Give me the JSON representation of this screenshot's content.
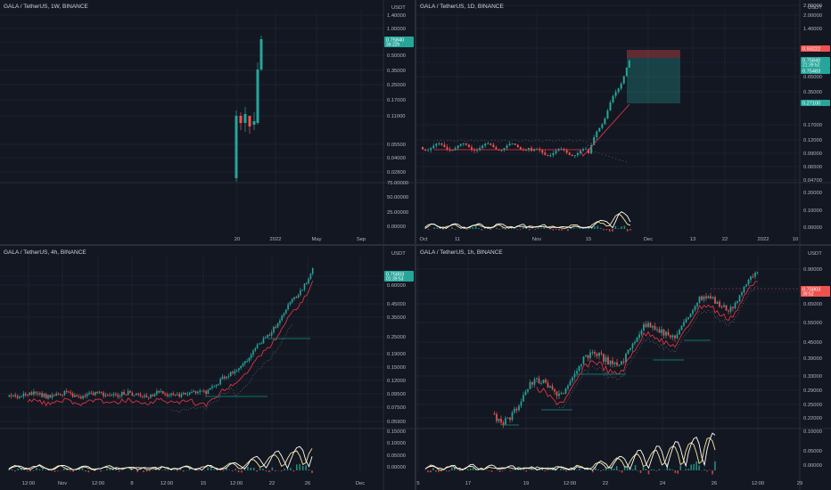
{
  "panes": [
    {
      "id": "w1",
      "title": "GALA / TetherUS, 1W, BINANCE",
      "axis_unit": "USDT",
      "y_ticks": [
        "1.40000",
        "1.00000",
        "0.50000",
        "0.35000",
        "0.25000",
        "0.17000",
        "0.11000",
        "0.05500",
        "0.04000",
        "0.02800"
      ],
      "lower_ticks": [
        "75.00000",
        "50.00000",
        "25.00000",
        "0.00000"
      ],
      "x_ticks": [
        "20",
        "2022",
        "May",
        "Sep"
      ],
      "price_labels": [
        {
          "value": "0.75840",
          "sub": "3d 22h",
          "color": "#26a69a"
        }
      ],
      "price_line": "0.75840"
    },
    {
      "id": "d1",
      "title": "GALA / TetherUS, 1D, BINANCE",
      "axis_unit": "USDT",
      "y_ticks": [
        "2.80000",
        "2.00000",
        "1.40000",
        "1.00000",
        "0.65000",
        "0.35000",
        "0.17000",
        "0.12000",
        "0.09000",
        "0.06500",
        "0.04700"
      ],
      "lower_ticks": [
        "0.20000",
        "0.10000",
        "0.00000"
      ],
      "x_ticks": [
        "Oct",
        "11",
        "Nov",
        "15",
        "Dec",
        "13",
        "22",
        "2022",
        "10"
      ],
      "price_labels": [
        {
          "value": "0.93222",
          "sub": "",
          "color": "#ef5350"
        },
        {
          "value": "0.75840",
          "sub": "21:39:52",
          "color": "#26a69a"
        },
        {
          "value": "0.75483",
          "sub": "",
          "color": "#26a69a"
        },
        {
          "value": "0.27100",
          "sub": "",
          "color": "#26a69a"
        }
      ],
      "price_line": "0.75840"
    },
    {
      "id": "h4",
      "title": "GALA / TetherUS, 4h, BINANCE",
      "axis_unit": "USDT",
      "y_ticks": [
        "0.60000",
        "0.45000",
        "0.35000",
        "0.25000",
        "0.19000",
        "0.15000",
        "0.12000",
        "0.09500",
        "0.07500",
        "0.05900"
      ],
      "lower_ticks": [
        "0.15000",
        "0.10000",
        "0.05000",
        "0.00000"
      ],
      "x_ticks": [
        "12:00",
        "Nov",
        "12:00",
        "8",
        "12:00",
        "15",
        "12:00",
        "22",
        "26",
        "Dec"
      ],
      "price_labels": [
        {
          "value": "0.75803",
          "sub": "01:39:53",
          "color": "#26a69a"
        }
      ],
      "price_line": "0.75803"
    },
    {
      "id": "h1",
      "title": "GALA / TetherUS, 1h, BINANCE",
      "axis_unit": "USDT",
      "y_ticks": [
        "0.90000",
        "0.65000",
        "0.55000",
        "0.45000",
        "0.39000",
        "0.33000",
        "0.29000",
        "0.25000",
        "0.22000"
      ],
      "lower_ticks": [
        "0.10000",
        "0.05000",
        "0.00000"
      ],
      "x_ticks": [
        "5",
        "17",
        "19",
        "12:00",
        "22",
        "24",
        "26",
        "12:00",
        "29"
      ],
      "price_labels": [
        {
          "value": "0.75803",
          "sub": "39:52",
          "color": "#ef5350"
        }
      ],
      "price_line": "0.75803"
    }
  ],
  "colors": {
    "background": "#131722",
    "grid": "#1e222d",
    "up": "#26a69a",
    "down": "#ef5350",
    "text": "#b2b5be",
    "ma_red": "#f23645",
    "ma_gray": "#787b86",
    "level_green": "#089981",
    "osc_white": "#ffffff",
    "osc_yellow": "#ffeb9c"
  }
}
